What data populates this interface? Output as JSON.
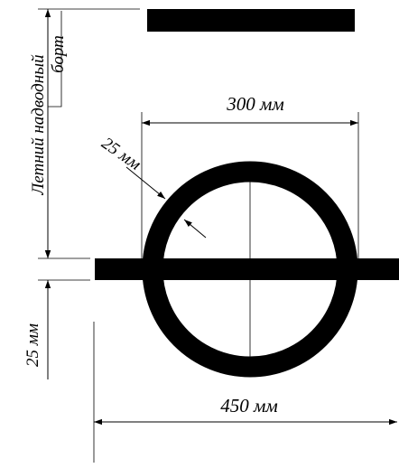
{
  "labels": {
    "freeboard_line1": "Летний надводный",
    "freeboard_line2": "борт",
    "dim_300": "300 мм",
    "dim_25_ring": "25 мм",
    "dim_25_line": "25 мм",
    "dim_450": "450 мм"
  },
  "colors": {
    "ink": "#000000",
    "background": "#ffffff"
  }
}
